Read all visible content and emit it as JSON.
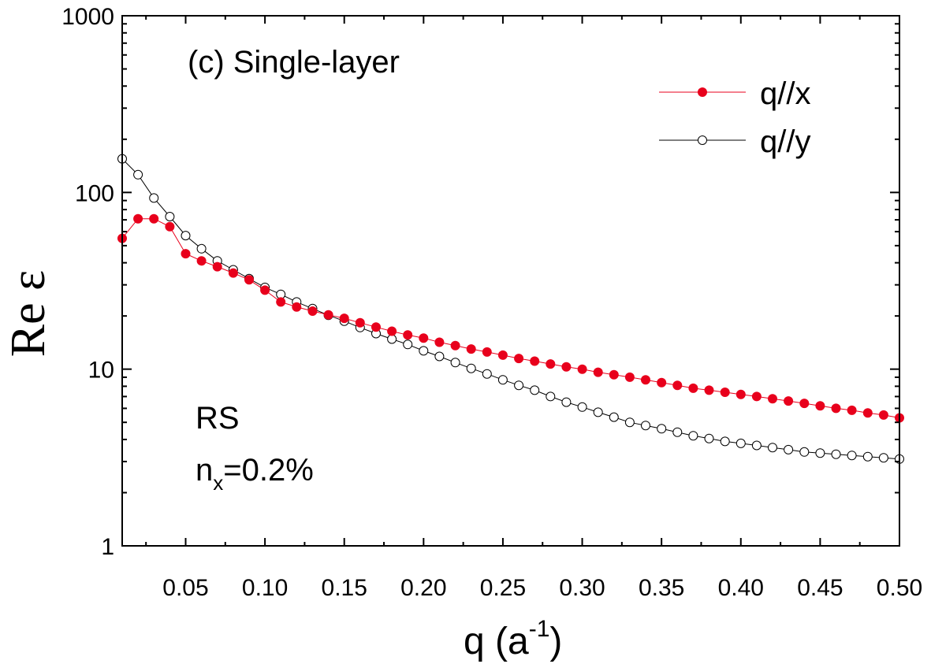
{
  "chart_data": {
    "type": "scatter",
    "title": "(c) Single-layer",
    "xlabel": "q (a",
    "xlabel_sup": "-1",
    "xlabel_end": ")",
    "ylabel": "Re ε",
    "xlim": [
      0.01,
      0.5
    ],
    "ylim": [
      1,
      1000
    ],
    "yscale": "log",
    "x_ticks": [
      0.05,
      0.1,
      0.15,
      0.2,
      0.25,
      0.3,
      0.35,
      0.4,
      0.45,
      0.5
    ],
    "x_tick_labels": [
      "0.05",
      "0.10",
      "0.15",
      "0.20",
      "0.25",
      "0.30",
      "0.35",
      "0.40",
      "0.45",
      "0.50"
    ],
    "y_ticks": [
      1,
      10,
      100,
      1000
    ],
    "y_tick_labels": [
      "1",
      "10",
      "100",
      "1000"
    ],
    "annotations": {
      "rs": "RS",
      "n_main": "n",
      "n_sub": "x",
      "n_value": "=0.2%"
    },
    "legend_position": "top-right",
    "series": [
      {
        "name": "q//x",
        "color": "#e8001c",
        "marker": "filled-circle",
        "x": [
          0.01,
          0.02,
          0.03,
          0.04,
          0.05,
          0.06,
          0.07,
          0.08,
          0.09,
          0.1,
          0.11,
          0.12,
          0.13,
          0.14,
          0.15,
          0.16,
          0.17,
          0.18,
          0.19,
          0.2,
          0.21,
          0.22,
          0.23,
          0.24,
          0.25,
          0.26,
          0.27,
          0.28,
          0.29,
          0.3,
          0.31,
          0.32,
          0.33,
          0.34,
          0.35,
          0.36,
          0.37,
          0.38,
          0.39,
          0.4,
          0.41,
          0.42,
          0.43,
          0.44,
          0.45,
          0.46,
          0.47,
          0.48,
          0.49,
          0.5
        ],
        "y": [
          55,
          71,
          71,
          64,
          45,
          41,
          38,
          35,
          32,
          28,
          24,
          22.5,
          21.3,
          20.3,
          19.4,
          18.3,
          17.3,
          16.4,
          15.6,
          15.0,
          14.2,
          13.6,
          13.0,
          12.5,
          12.0,
          11.5,
          11.1,
          10.7,
          10.3,
          10.0,
          9.6,
          9.3,
          9.0,
          8.7,
          8.4,
          8.1,
          7.8,
          7.6,
          7.4,
          7.2,
          7.0,
          6.8,
          6.6,
          6.4,
          6.2,
          6.0,
          5.85,
          5.65,
          5.5,
          5.3
        ]
      },
      {
        "name": "q//y",
        "color": "#000000",
        "marker": "open-circle",
        "x": [
          0.01,
          0.02,
          0.03,
          0.04,
          0.05,
          0.06,
          0.07,
          0.08,
          0.09,
          0.1,
          0.11,
          0.12,
          0.13,
          0.14,
          0.15,
          0.16,
          0.17,
          0.18,
          0.19,
          0.2,
          0.21,
          0.22,
          0.23,
          0.24,
          0.25,
          0.26,
          0.27,
          0.28,
          0.29,
          0.3,
          0.31,
          0.32,
          0.33,
          0.34,
          0.35,
          0.36,
          0.37,
          0.38,
          0.39,
          0.4,
          0.41,
          0.42,
          0.43,
          0.44,
          0.45,
          0.46,
          0.47,
          0.48,
          0.49,
          0.5
        ],
        "y": [
          155,
          126,
          93,
          73,
          57,
          48,
          41,
          36.5,
          32.5,
          29,
          26.5,
          24,
          22,
          20.2,
          18.7,
          17.2,
          15.9,
          14.8,
          13.8,
          12.7,
          11.8,
          10.9,
          10.1,
          9.4,
          8.7,
          8.1,
          7.6,
          7.0,
          6.5,
          6.1,
          5.7,
          5.35,
          5.0,
          4.8,
          4.6,
          4.4,
          4.2,
          4.05,
          3.9,
          3.8,
          3.7,
          3.6,
          3.5,
          3.4,
          3.35,
          3.3,
          3.25,
          3.2,
          3.15,
          3.1
        ]
      }
    ]
  }
}
